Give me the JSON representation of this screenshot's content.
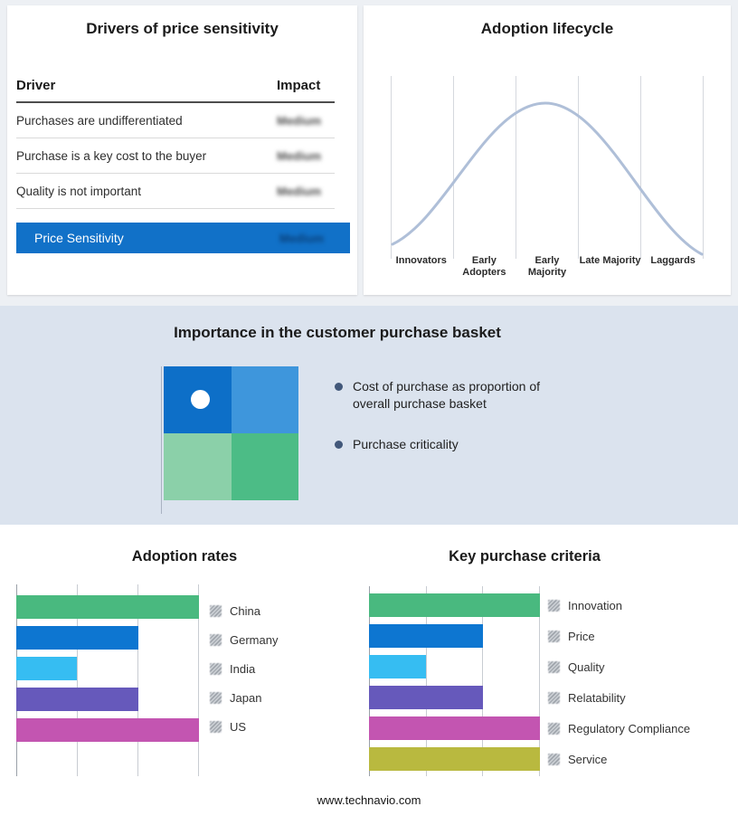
{
  "page": {
    "footer_url": "www.technavio.com",
    "background": "#edf0f4",
    "band_background": "#dbe3ee"
  },
  "drivers_panel": {
    "title": "Drivers of price sensitivity",
    "columns": {
      "driver": "Driver",
      "impact": "Impact"
    },
    "rows": [
      {
        "driver": "Purchases are undifferentiated",
        "impact": "Medium"
      },
      {
        "driver": "Purchase is a key cost to the buyer",
        "impact": "Medium"
      },
      {
        "driver": "Quality is not important",
        "impact": "Medium"
      }
    ],
    "summary_row": {
      "label": "Price Sensitivity",
      "impact": "Medium",
      "background": "#1171c8"
    }
  },
  "lifecycle_panel": {
    "title": "Adoption lifecycle",
    "stages": [
      "Innovators",
      "Early Adopters",
      "Early Majority",
      "Late Majority",
      "Laggards"
    ],
    "curve_color": "#afbfd8"
  },
  "importance_panel": {
    "title": "Importance in the customer purchase basket",
    "bullets": [
      "Cost of purchase as proportion of overall purchase basket",
      "Purchase criticality"
    ],
    "quadrant_colors": {
      "top_left": "#0d6fc8",
      "top_right": "#3e96dc",
      "bottom_left": "#8bd0a9",
      "bottom_right": "#4cbc86"
    },
    "marker": "white-dot-top-left"
  },
  "chart_data": [
    {
      "type": "bar",
      "orientation": "horizontal",
      "title": "Adoption rates",
      "categories": [
        "China",
        "Germany",
        "India",
        "Japan",
        "US"
      ],
      "values": [
        3,
        2,
        1,
        2,
        3
      ],
      "xlim": [
        0,
        3
      ],
      "colors": [
        "#49b97f",
        "#0d76d1",
        "#36bdf2",
        "#6659bb",
        "#c355b1"
      ],
      "grid": true,
      "legend_position": "right"
    },
    {
      "type": "bar",
      "orientation": "horizontal",
      "title": "Key purchase criteria",
      "categories": [
        "Innovation",
        "Price",
        "Quality",
        "Relatability",
        "Regulatory Compliance",
        "Service"
      ],
      "values": [
        3,
        2,
        1,
        2,
        3,
        3
      ],
      "xlim": [
        0,
        3
      ],
      "colors": [
        "#49b97f",
        "#0d76d1",
        "#36bdf2",
        "#6659bb",
        "#c355b1",
        "#b9b93f"
      ],
      "grid": true,
      "legend_position": "right"
    }
  ]
}
